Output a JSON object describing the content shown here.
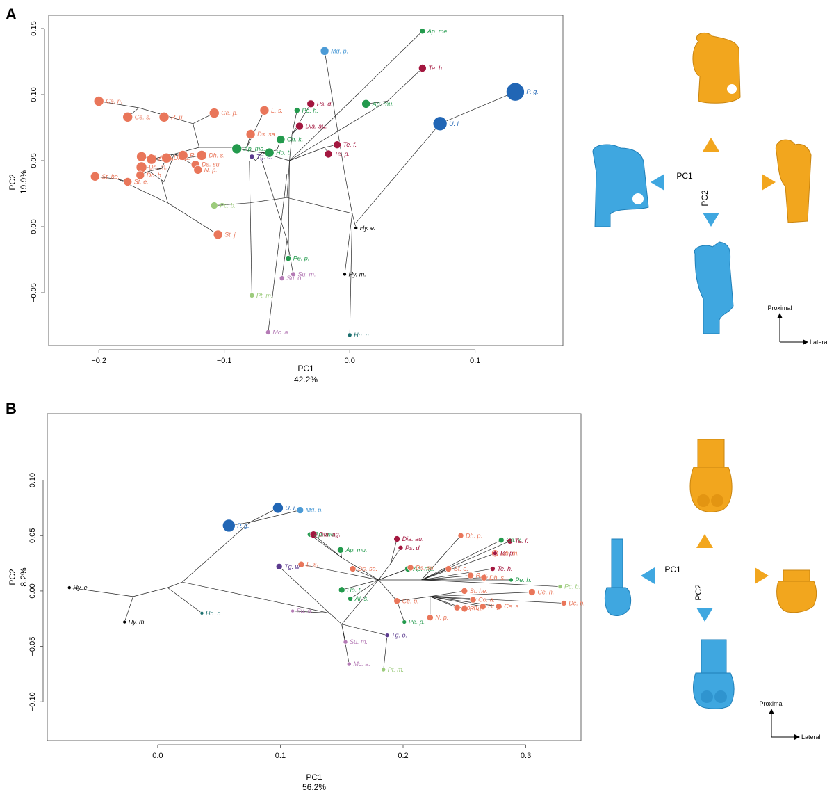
{
  "colors": {
    "orange_salmon": "#E9765A",
    "green": "#239A4D",
    "light_green": "#9CCB7C",
    "crimson": "#A3173F",
    "purple": "#5B3A8E",
    "pink_purple": "#B47AB5",
    "teal": "#1B6F6E",
    "blue": "#2166B5",
    "light_blue": "#4C9BD6",
    "black": "#000000",
    "model_blue": "#3FA7E0",
    "model_orange": "#F2A61E"
  },
  "panels": {
    "A": {
      "letter": "A",
      "compass": {
        "pc1_label": "PC1",
        "pc2_label": "PC2"
      },
      "orientation": {
        "vertical": "Proximal",
        "horizontal": "Lateral"
      },
      "model_shapes": {
        "top": "femur-proximal-orange-icon",
        "left": "femur-proximal-blue-icon",
        "right": "femur-proximal-orange-icon",
        "bottom": "femur-proximal-blue-icon"
      }
    },
    "B": {
      "letter": "B",
      "compass": {
        "pc1_label": "PC1",
        "pc2_label": "PC2"
      },
      "orientation": {
        "vertical": "Proximal",
        "horizontal": "Lateral"
      },
      "model_shapes": {
        "top": "femur-distal-orange-icon",
        "left": "femur-distal-blue-icon",
        "right": "femur-distal-orange-icon",
        "bottom": "femur-distal-blue-icon"
      }
    }
  },
  "chart_data": [
    {
      "type": "scatter",
      "panel": "A",
      "xlabel": "PC1",
      "xlabel_sub": "42.2%",
      "ylabel": "PC2",
      "ylabel_sub": "19.9%",
      "xlim": [
        -0.24,
        0.17
      ],
      "ylim": [
        -0.09,
        0.16
      ],
      "xticks": [
        -0.2,
        -0.1,
        0.0,
        0.1
      ],
      "xtick_labels": [
        "−0.2",
        "−0.1",
        "0.0",
        "0.1"
      ],
      "yticks": [
        -0.05,
        0.0,
        0.05,
        0.1,
        0.15
      ],
      "ytick_labels": [
        "−0.05",
        "0.00",
        "0.05",
        "0.10",
        "0.15"
      ],
      "grid": false,
      "points": [
        {
          "label": "Ap. me.",
          "x": 0.058,
          "y": 0.148,
          "color": "green",
          "size": 4
        },
        {
          "label": "Md. p.",
          "x": -0.02,
          "y": 0.133,
          "color": "light_blue",
          "size": 6
        },
        {
          "label": "Te. h.",
          "x": 0.058,
          "y": 0.12,
          "color": "crimson",
          "size": 5.5
        },
        {
          "label": "P. g.",
          "x": 0.132,
          "y": 0.102,
          "color": "blue",
          "size": 13
        },
        {
          "label": "U. i.",
          "x": 0.072,
          "y": 0.078,
          "color": "blue",
          "size": 10
        },
        {
          "label": "Ap. mu.",
          "x": 0.013,
          "y": 0.093,
          "color": "green",
          "size": 6
        },
        {
          "label": "Ps. d.",
          "x": -0.031,
          "y": 0.093,
          "color": "crimson",
          "size": 5.5
        },
        {
          "label": "Pe. h.",
          "x": -0.042,
          "y": 0.088,
          "color": "green",
          "size": 4
        },
        {
          "label": "Dia. au.",
          "x": -0.04,
          "y": 0.076,
          "color": "crimson",
          "size": 5.5
        },
        {
          "label": "Te. f.",
          "x": -0.01,
          "y": 0.062,
          "color": "crimson",
          "size": 5.5
        },
        {
          "label": "Te. p.",
          "x": -0.017,
          "y": 0.055,
          "color": "crimson",
          "size": 5.5
        },
        {
          "label": "Ch. k.",
          "x": -0.055,
          "y": 0.066,
          "color": "green",
          "size": 6
        },
        {
          "label": "Ho. t.",
          "x": -0.064,
          "y": 0.056,
          "color": "green",
          "size": 6.5
        },
        {
          "label": "Ap. ma.",
          "x": -0.09,
          "y": 0.059,
          "color": "green",
          "size": 7
        },
        {
          "label": "Tg. o.",
          "x": -0.078,
          "y": 0.053,
          "color": "purple",
          "size": 3.5
        },
        {
          "label": "Ce. n.",
          "x": -0.2,
          "y": 0.095,
          "color": "orange_salmon",
          "size": 7
        },
        {
          "label": "Ce. s.",
          "x": -0.177,
          "y": 0.083,
          "color": "orange_salmon",
          "size": 7
        },
        {
          "label": "R. u.",
          "x": -0.148,
          "y": 0.083,
          "color": "orange_salmon",
          "size": 7
        },
        {
          "label": "Ce. p.",
          "x": -0.108,
          "y": 0.086,
          "color": "orange_salmon",
          "size": 7
        },
        {
          "label": "L. s.",
          "x": -0.068,
          "y": 0.088,
          "color": "orange_salmon",
          "size": 6.5
        },
        {
          "label": "Ds. sa.",
          "x": -0.079,
          "y": 0.07,
          "color": "orange_salmon",
          "size": 6.5
        },
        {
          "label": "Co. a.",
          "x": -0.158,
          "y": 0.051,
          "color": "orange_salmon",
          "size": 7
        },
        {
          "label": "Co. n.",
          "x": -0.166,
          "y": 0.053,
          "color": "orange_salmon",
          "size": 7
        },
        {
          "label": "R. s.",
          "x": -0.133,
          "y": 0.054,
          "color": "orange_salmon",
          "size": 7
        },
        {
          "label": "Dh. s.",
          "x": -0.118,
          "y": 0.054,
          "color": "orange_salmon",
          "size": 7
        },
        {
          "label": "Dh. m.",
          "x": -0.166,
          "y": 0.045,
          "color": "orange_salmon",
          "size": 7.5
        },
        {
          "label": "Dh. p.",
          "x": -0.146,
          "y": 0.052,
          "color": "orange_salmon",
          "size": 7
        },
        {
          "label": "Ds. su.",
          "x": -0.123,
          "y": 0.047,
          "color": "orange_salmon",
          "size": 6
        },
        {
          "label": "N. p.",
          "x": -0.121,
          "y": 0.043,
          "color": "orange_salmon",
          "size": 6
        },
        {
          "label": "Dc. b.",
          "x": -0.167,
          "y": 0.039,
          "color": "orange_salmon",
          "size": 6
        },
        {
          "label": "St. e.",
          "x": -0.177,
          "y": 0.034,
          "color": "orange_salmon",
          "size": 6
        },
        {
          "label": "St. he.",
          "x": -0.203,
          "y": 0.038,
          "color": "orange_salmon",
          "size": 6.5
        },
        {
          "label": "St. j.",
          "x": -0.105,
          "y": -0.006,
          "color": "orange_salmon",
          "size": 6.5
        },
        {
          "label": "Pc. b.",
          "x": -0.108,
          "y": 0.016,
          "color": "light_green",
          "size": 5
        },
        {
          "label": "Hy. e.",
          "x": 0.005,
          "y": -0.001,
          "color": "black",
          "size": 2.5
        },
        {
          "label": "Hy. m.",
          "x": -0.004,
          "y": -0.036,
          "color": "black",
          "size": 2.5
        },
        {
          "label": "Pe. p.",
          "x": -0.049,
          "y": -0.024,
          "color": "green",
          "size": 4
        },
        {
          "label": "Su. m.",
          "x": -0.045,
          "y": -0.036,
          "color": "pink_purple",
          "size": 3.5
        },
        {
          "label": "Su. o.",
          "x": -0.054,
          "y": -0.039,
          "color": "pink_purple",
          "size": 3.5
        },
        {
          "label": "Pt. m.",
          "x": -0.078,
          "y": -0.052,
          "color": "light_green",
          "size": 3.5
        },
        {
          "label": "Mc. a.",
          "x": -0.065,
          "y": -0.08,
          "color": "pink_purple",
          "size": 3.5
        },
        {
          "label": "Hn. n.",
          "x": 0.0,
          "y": -0.082,
          "color": "teal",
          "size": 3
        }
      ]
    },
    {
      "type": "scatter",
      "panel": "B",
      "xlabel": "PC1",
      "xlabel_sub": "56.2%",
      "ylabel": "PC2",
      "ylabel_sub": "8.2%",
      "xlim": [
        -0.09,
        0.345
      ],
      "ylim": [
        -0.135,
        0.16
      ],
      "xticks": [
        0.0,
        0.1,
        0.2,
        0.3
      ],
      "xtick_labels": [
        "0.0",
        "0.1",
        "0.2",
        "0.3"
      ],
      "yticks": [
        -0.1,
        -0.05,
        0.0,
        0.05,
        0.1
      ],
      "ytick_labels": [
        "−0.10",
        "−0.05",
        "0.00",
        "0.05",
        "0.10"
      ],
      "grid": false,
      "points": [
        {
          "label": "Hy. e.",
          "x": -0.072,
          "y": 0.003,
          "color": "black",
          "size": 2.5
        },
        {
          "label": "Hy. m.",
          "x": -0.027,
          "y": -0.028,
          "color": "black",
          "size": 2.5
        },
        {
          "label": "Hn. n.",
          "x": 0.036,
          "y": -0.02,
          "color": "teal",
          "size": 2.5
        },
        {
          "label": "P. g.",
          "x": 0.058,
          "y": 0.059,
          "color": "blue",
          "size": 9
        },
        {
          "label": "U. i.",
          "x": 0.098,
          "y": 0.075,
          "color": "blue",
          "size": 7.5
        },
        {
          "label": "Md. p.",
          "x": 0.116,
          "y": 0.073,
          "color": "light_blue",
          "size": 5
        },
        {
          "label": "Ap. me.",
          "x": 0.124,
          "y": 0.051,
          "color": "green",
          "size": 3.5
        },
        {
          "label": "Dia. ag.",
          "x": 0.127,
          "y": 0.051,
          "color": "crimson",
          "size": 5
        },
        {
          "label": "Ap. mu.",
          "x": 0.149,
          "y": 0.037,
          "color": "green",
          "size": 4.5
        },
        {
          "label": "Tg. w.",
          "x": 0.099,
          "y": 0.022,
          "color": "purple",
          "size": 4.5
        },
        {
          "label": "L. s.",
          "x": 0.117,
          "y": 0.024,
          "color": "orange_salmon",
          "size": 4.5
        },
        {
          "label": "Ds. sa.",
          "x": 0.159,
          "y": 0.02,
          "color": "orange_salmon",
          "size": 4.5
        },
        {
          "label": "Ho. t.",
          "x": 0.15,
          "y": 0.001,
          "color": "green",
          "size": 4.5
        },
        {
          "label": "Al. s.",
          "x": 0.157,
          "y": -0.007,
          "color": "green",
          "size": 3.5
        },
        {
          "label": "Su. o.",
          "x": 0.11,
          "y": -0.018,
          "color": "pink_purple",
          "size": 2.5
        },
        {
          "label": "Su. m.",
          "x": 0.153,
          "y": -0.046,
          "color": "pink_purple",
          "size": 3
        },
        {
          "label": "Mc. a.",
          "x": 0.156,
          "y": -0.066,
          "color": "pink_purple",
          "size": 3
        },
        {
          "label": "Tg. o.",
          "x": 0.187,
          "y": -0.04,
          "color": "purple",
          "size": 3
        },
        {
          "label": "Pt. m.",
          "x": 0.184,
          "y": -0.071,
          "color": "light_green",
          "size": 3
        },
        {
          "label": "Pe. p.",
          "x": 0.201,
          "y": -0.028,
          "color": "green",
          "size": 3
        },
        {
          "label": "Ce. p.",
          "x": 0.195,
          "y": -0.009,
          "color": "orange_salmon",
          "size": 4.5
        },
        {
          "label": "Ap. ma.",
          "x": 0.204,
          "y": 0.02,
          "color": "green",
          "size": 4.5
        },
        {
          "label": "Ds. su.",
          "x": 0.206,
          "y": 0.021,
          "color": "orange_salmon",
          "size": 4.5
        },
        {
          "label": "Dia. au.",
          "x": 0.195,
          "y": 0.047,
          "color": "crimson",
          "size": 4.5
        },
        {
          "label": "Ps. d.",
          "x": 0.198,
          "y": 0.039,
          "color": "crimson",
          "size": 3.5
        },
        {
          "label": "Dh. p.",
          "x": 0.247,
          "y": 0.05,
          "color": "orange_salmon",
          "size": 4
        },
        {
          "label": "Ch. k.",
          "x": 0.28,
          "y": 0.046,
          "color": "green",
          "size": 4
        },
        {
          "label": "Te. f.",
          "x": 0.287,
          "y": 0.045,
          "color": "crimson",
          "size": 4
        },
        {
          "label": "Dh. m.",
          "x": 0.275,
          "y": 0.034,
          "color": "orange_salmon",
          "size": 5
        },
        {
          "label": "Te. p.",
          "x": 0.275,
          "y": 0.034,
          "color": "crimson",
          "size": 3
        },
        {
          "label": "Te. h.",
          "x": 0.273,
          "y": 0.02,
          "color": "crimson",
          "size": 3.5
        },
        {
          "label": "St. e.",
          "x": 0.237,
          "y": 0.02,
          "color": "orange_salmon",
          "size": 4.5
        },
        {
          "label": "R. s.",
          "x": 0.255,
          "y": 0.014,
          "color": "orange_salmon",
          "size": 4.5
        },
        {
          "label": "Dh. s.",
          "x": 0.266,
          "y": 0.012,
          "color": "orange_salmon",
          "size": 4.5
        },
        {
          "label": "Pe. h.",
          "x": 0.288,
          "y": 0.01,
          "color": "green",
          "size": 3
        },
        {
          "label": "Pc. b.",
          "x": 0.328,
          "y": 0.004,
          "color": "light_green",
          "size": 3
        },
        {
          "label": "St. he.",
          "x": 0.25,
          "y": 0.0,
          "color": "orange_salmon",
          "size": 4.5
        },
        {
          "label": "Ce. n.",
          "x": 0.305,
          "y": -0.001,
          "color": "orange_salmon",
          "size": 5
        },
        {
          "label": "Co. a.",
          "x": 0.257,
          "y": -0.008,
          "color": "orange_salmon",
          "size": 4.5
        },
        {
          "label": "Dc. b.",
          "x": 0.331,
          "y": -0.011,
          "color": "orange_salmon",
          "size": 4
        },
        {
          "label": "Ce. s.",
          "x": 0.278,
          "y": -0.014,
          "color": "orange_salmon",
          "size": 4.5
        },
        {
          "label": "St. j.",
          "x": 0.265,
          "y": -0.014,
          "color": "orange_salmon",
          "size": 4.5
        },
        {
          "label": "Co. n.",
          "x": 0.244,
          "y": -0.015,
          "color": "orange_salmon",
          "size": 4.5
        },
        {
          "label": "R. u.",
          "x": 0.25,
          "y": -0.016,
          "color": "orange_salmon",
          "size": 4.5
        },
        {
          "label": "N. p.",
          "x": 0.222,
          "y": -0.024,
          "color": "orange_salmon",
          "size": 4.5
        }
      ]
    }
  ]
}
